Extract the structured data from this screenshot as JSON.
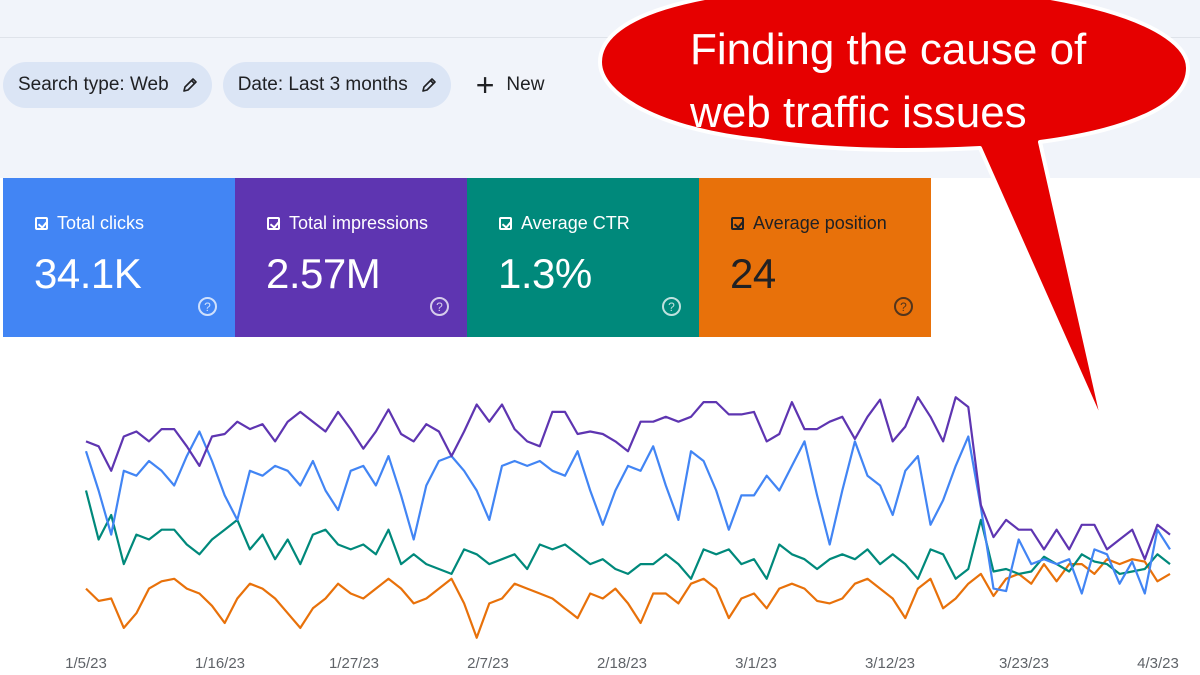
{
  "filters": {
    "search_type": "Search type: Web",
    "date": "Date: Last 3 months",
    "new": "New"
  },
  "metrics": [
    {
      "label": "Total clicks",
      "value": "34.1K",
      "color": "#4285f4"
    },
    {
      "label": "Total impressions",
      "value": "2.57M",
      "color": "#5e35b1"
    },
    {
      "label": "Average CTR",
      "value": "1.3%",
      "color": "#00897b"
    },
    {
      "label": "Average position",
      "value": "24",
      "color": "#e8710a"
    }
  ],
  "callout": {
    "text_line1": "Finding the cause of",
    "text_line2": "web traffic issues",
    "color": "#e60000"
  },
  "chart_data": {
    "type": "line",
    "x_tick_labels": [
      "1/5/23",
      "1/16/23",
      "1/27/23",
      "2/7/23",
      "2/18/23",
      "3/1/23",
      "3/12/23",
      "3/23/23",
      "4/3/23"
    ],
    "y_axis": "no labeled axis",
    "series": [
      {
        "name": "Total impressions",
        "color": "#5e35b1",
        "values": [
          70,
          68,
          58,
          72,
          74,
          70,
          75,
          75,
          68,
          60,
          72,
          73,
          78,
          75,
          77,
          70,
          78,
          82,
          78,
          74,
          82,
          75,
          67,
          74,
          83,
          73,
          70,
          77,
          74,
          64,
          74,
          85,
          78,
          85,
          75,
          70,
          68,
          82,
          82,
          73,
          74,
          73,
          70,
          66,
          78,
          78,
          80,
          78,
          80,
          86,
          86,
          81,
          81,
          82,
          70,
          73,
          86,
          75,
          75,
          78,
          80,
          71,
          80,
          87,
          70,
          76,
          88,
          80,
          70,
          88,
          84,
          44,
          31,
          38,
          34,
          34,
          26,
          34,
          26,
          36,
          36,
          26,
          30,
          34,
          22,
          36,
          32
        ]
      },
      {
        "name": "Total clicks",
        "color": "#4285f4",
        "values": [
          66,
          50,
          32,
          58,
          56,
          62,
          58,
          52,
          64,
          74,
          62,
          48,
          38,
          58,
          56,
          60,
          58,
          52,
          62,
          50,
          42,
          58,
          60,
          52,
          64,
          48,
          30,
          52,
          62,
          64,
          58,
          50,
          38,
          60,
          62,
          60,
          62,
          58,
          56,
          66,
          50,
          36,
          50,
          60,
          58,
          68,
          52,
          38,
          66,
          62,
          50,
          34,
          48,
          48,
          56,
          50,
          60,
          70,
          48,
          28,
          50,
          70,
          56,
          52,
          40,
          58,
          64,
          36,
          46,
          60,
          72,
          43,
          10,
          9,
          30,
          20,
          22,
          20,
          22,
          8,
          26,
          24,
          12,
          21,
          8,
          34,
          26
        ]
      },
      {
        "name": "Average CTR",
        "color": "#00897b",
        "values": [
          50,
          30,
          40,
          20,
          32,
          30,
          34,
          34,
          28,
          24,
          30,
          34,
          38,
          26,
          32,
          22,
          30,
          20,
          32,
          34,
          28,
          26,
          28,
          24,
          34,
          20,
          24,
          20,
          18,
          16,
          26,
          24,
          20,
          22,
          24,
          18,
          28,
          26,
          28,
          24,
          20,
          22,
          18,
          16,
          20,
          20,
          24,
          20,
          14,
          26,
          24,
          26,
          20,
          22,
          14,
          28,
          24,
          22,
          18,
          22,
          24,
          22,
          26,
          20,
          24,
          20,
          14,
          26,
          24,
          14,
          18,
          38,
          17,
          18,
          16,
          17,
          23,
          20,
          17,
          24,
          21,
          20,
          16,
          17,
          18,
          24,
          20
        ]
      },
      {
        "name": "Average position",
        "color": "#e8710a",
        "values": [
          10,
          5,
          6,
          -6,
          0,
          10,
          13,
          14,
          10,
          8,
          3,
          -4,
          6,
          12,
          10,
          6,
          0,
          -6,
          2,
          6,
          12,
          8,
          6,
          10,
          14,
          10,
          4,
          6,
          10,
          14,
          4,
          -10,
          4,
          6,
          12,
          10,
          8,
          6,
          2,
          -2,
          8,
          6,
          10,
          4,
          -4,
          8,
          8,
          4,
          12,
          14,
          10,
          -2,
          6,
          8,
          2,
          10,
          12,
          10,
          5,
          4,
          6,
          12,
          14,
          10,
          6,
          -2,
          10,
          14,
          2,
          6,
          12,
          16,
          7,
          14,
          16,
          12,
          20,
          13,
          20,
          20,
          16,
          22,
          20,
          22,
          21,
          13,
          16
        ]
      }
    ]
  }
}
